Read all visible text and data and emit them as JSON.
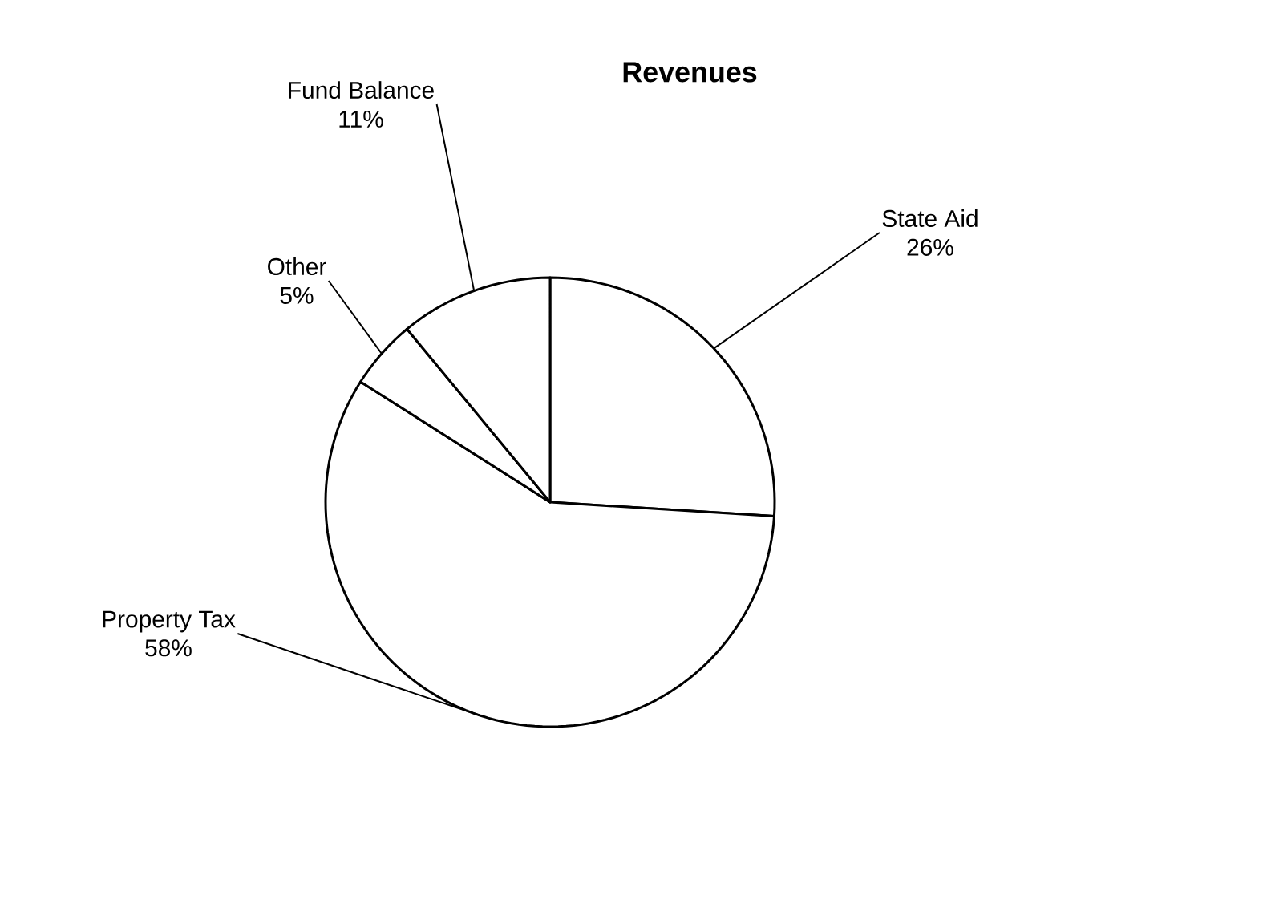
{
  "chart_data": {
    "type": "pie",
    "title": "Revenues",
    "categories": [
      "State Aid",
      "Property Tax",
      "Other",
      "Fund Balance"
    ],
    "values": [
      26,
      58,
      5,
      11
    ],
    "value_labels": [
      "26%",
      "58%",
      "5%",
      "11%"
    ],
    "colors": [
      "#ffffff",
      "#ffffff",
      "#ffffff",
      "#ffffff"
    ]
  }
}
